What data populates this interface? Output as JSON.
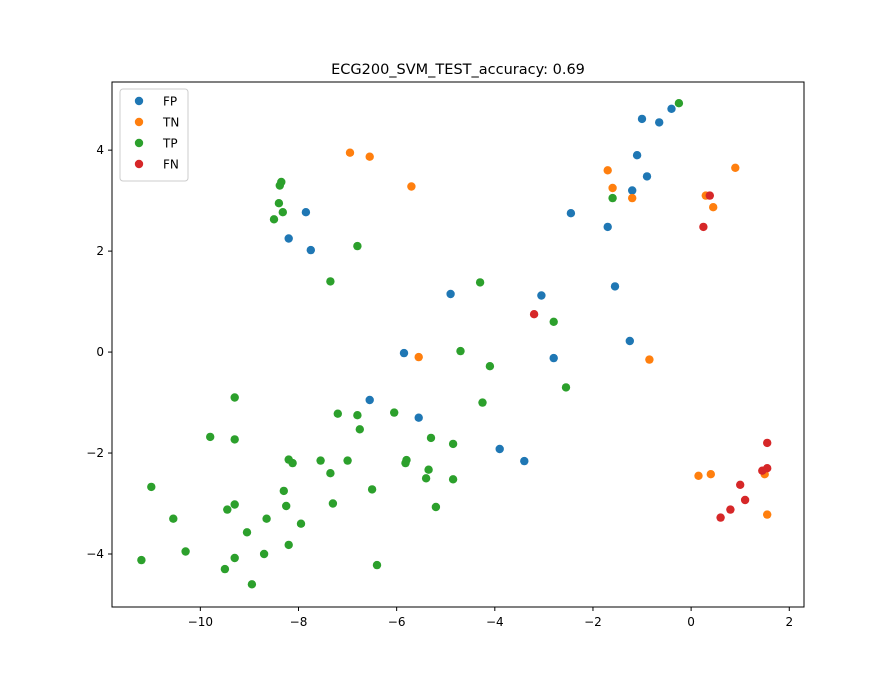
{
  "chart_data": {
    "type": "scatter",
    "title": "ECG200_SVM_TEST_accuracy: 0.69",
    "xlabel": "",
    "ylabel": "",
    "xlim": [
      -11.8,
      2.3
    ],
    "ylim": [
      -5.05,
      5.35
    ],
    "xticks": [
      -10,
      -8,
      -6,
      -4,
      -2,
      0,
      2
    ],
    "yticks": [
      -4,
      -2,
      0,
      2,
      4
    ],
    "grid": false,
    "legend_position": "top-left",
    "series": [
      {
        "name": "FP",
        "color": "#1f77b4",
        "points": [
          [
            -1.0,
            4.62
          ],
          [
            -0.4,
            4.82
          ],
          [
            -0.65,
            4.55
          ],
          [
            -1.1,
            3.9
          ],
          [
            -0.9,
            3.48
          ],
          [
            -1.2,
            3.2
          ],
          [
            -2.45,
            2.75
          ],
          [
            -1.7,
            2.48
          ],
          [
            -1.55,
            1.3
          ],
          [
            -3.05,
            1.12
          ],
          [
            -4.9,
            1.15
          ],
          [
            -1.25,
            0.22
          ],
          [
            -2.8,
            -0.12
          ],
          [
            -7.85,
            2.77
          ],
          [
            -8.2,
            2.25
          ],
          [
            -7.75,
            2.02
          ],
          [
            -5.85,
            -0.02
          ],
          [
            -6.55,
            -0.95
          ],
          [
            -5.55,
            -1.3
          ],
          [
            -3.9,
            -1.92
          ],
          [
            -3.4,
            -2.16
          ]
        ]
      },
      {
        "name": "TN",
        "color": "#ff7f0e",
        "points": [
          [
            -6.95,
            3.95
          ],
          [
            -6.55,
            3.87
          ],
          [
            -5.7,
            3.28
          ],
          [
            -1.7,
            3.6
          ],
          [
            -1.6,
            3.25
          ],
          [
            -1.2,
            3.05
          ],
          [
            0.3,
            3.1
          ],
          [
            0.45,
            2.87
          ],
          [
            0.9,
            3.65
          ],
          [
            -5.55,
            -0.1
          ],
          [
            -0.85,
            -0.15
          ],
          [
            0.15,
            -2.45
          ],
          [
            0.4,
            -2.42
          ],
          [
            1.5,
            -2.42
          ],
          [
            1.55,
            -3.22
          ]
        ]
      },
      {
        "name": "TP",
        "color": "#2ca02c",
        "points": [
          [
            -0.25,
            4.93
          ],
          [
            -1.6,
            3.05
          ],
          [
            -8.35,
            3.37
          ],
          [
            -8.38,
            3.3
          ],
          [
            -8.4,
            2.95
          ],
          [
            -8.32,
            2.77
          ],
          [
            -8.5,
            2.63
          ],
          [
            -6.8,
            2.1
          ],
          [
            -7.35,
            1.4
          ],
          [
            -4.3,
            1.38
          ],
          [
            -2.8,
            0.6
          ],
          [
            -4.7,
            0.02
          ],
          [
            -4.1,
            -0.28
          ],
          [
            -2.55,
            -0.7
          ],
          [
            -9.3,
            -0.9
          ],
          [
            -4.25,
            -1.0
          ],
          [
            -7.2,
            -1.22
          ],
          [
            -6.8,
            -1.25
          ],
          [
            -6.05,
            -1.2
          ],
          [
            -6.75,
            -1.53
          ],
          [
            -9.8,
            -1.68
          ],
          [
            -9.3,
            -1.73
          ],
          [
            -5.3,
            -1.7
          ],
          [
            -4.85,
            -1.82
          ],
          [
            -8.2,
            -2.13
          ],
          [
            -8.12,
            -2.2
          ],
          [
            -7.55,
            -2.15
          ],
          [
            -7.0,
            -2.15
          ],
          [
            -5.8,
            -2.14
          ],
          [
            -5.82,
            -2.2
          ],
          [
            -7.35,
            -2.4
          ],
          [
            -5.35,
            -2.33
          ],
          [
            -5.4,
            -2.5
          ],
          [
            -4.85,
            -2.52
          ],
          [
            -11.0,
            -2.67
          ],
          [
            -8.3,
            -2.75
          ],
          [
            -6.5,
            -2.72
          ],
          [
            -7.3,
            -3.0
          ],
          [
            -9.3,
            -3.02
          ],
          [
            -8.25,
            -3.05
          ],
          [
            -5.2,
            -3.07
          ],
          [
            -9.45,
            -3.12
          ],
          [
            -10.55,
            -3.3
          ],
          [
            -8.65,
            -3.3
          ],
          [
            -7.95,
            -3.4
          ],
          [
            -9.05,
            -3.57
          ],
          [
            -8.2,
            -3.82
          ],
          [
            -10.3,
            -3.95
          ],
          [
            -8.7,
            -4.0
          ],
          [
            -9.3,
            -4.08
          ],
          [
            -11.2,
            -4.12
          ],
          [
            -6.4,
            -4.22
          ],
          [
            -9.5,
            -4.3
          ],
          [
            -8.95,
            -4.6
          ]
        ]
      },
      {
        "name": "FN",
        "color": "#d62728",
        "points": [
          [
            0.38,
            3.1
          ],
          [
            0.25,
            2.48
          ],
          [
            -3.2,
            0.75
          ],
          [
            1.55,
            -1.8
          ],
          [
            1.55,
            -2.3
          ],
          [
            1.45,
            -2.35
          ],
          [
            1.0,
            -2.63
          ],
          [
            1.1,
            -2.93
          ],
          [
            0.8,
            -3.12
          ],
          [
            0.6,
            -3.28
          ]
        ]
      }
    ]
  }
}
